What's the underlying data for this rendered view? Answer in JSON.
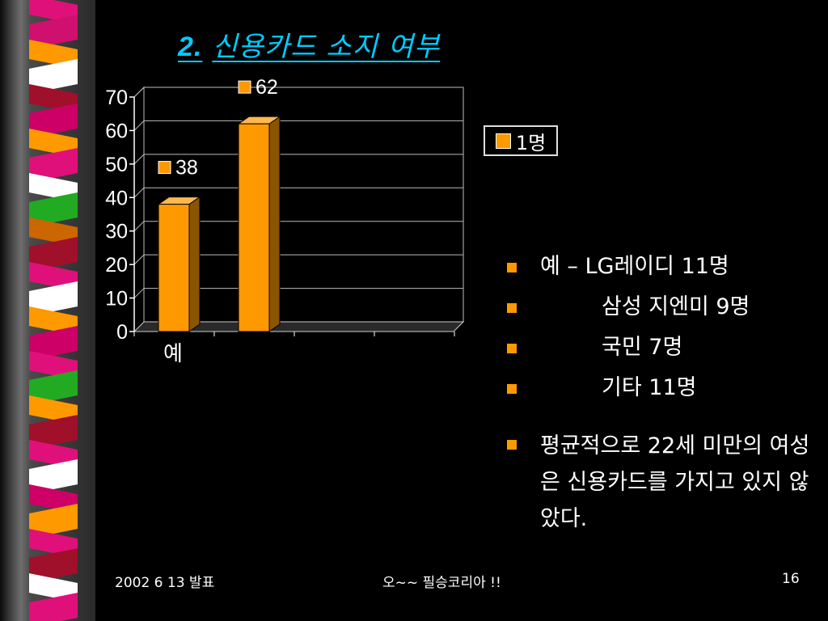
{
  "slide": {
    "title_number": "2.",
    "title_text": "신용카드 소지 여부"
  },
  "colors": {
    "background": "#000000",
    "title": "#00ccff",
    "bar": "#ff9900",
    "bullet": "#ff9900"
  },
  "chart_data": {
    "type": "bar",
    "categories": [
      "예",
      ""
    ],
    "series": [
      {
        "name": "1명",
        "values": [
          38,
          62
        ]
      }
    ],
    "ylim": [
      0,
      70
    ],
    "yticks": [
      0,
      10,
      20,
      30,
      40,
      50,
      60,
      70
    ],
    "data_labels": [
      "38",
      "62"
    ],
    "grid": true,
    "legend": "right",
    "three_d": true
  },
  "legend": {
    "label": "1명"
  },
  "bullets": [
    {
      "text": "예 – LG레이디 11명",
      "indent": false
    },
    {
      "text": "삼성 지엔미 9명",
      "indent": true
    },
    {
      "text": "국민 7명",
      "indent": true
    },
    {
      "text": "기타 11명",
      "indent": true
    },
    {
      "text": "평균적으로 22세 미만의 여성은 신용카드를 가지고 있지 않았다.",
      "indent": false
    }
  ],
  "footer": {
    "date": "2002 6 13 발표",
    "center": "오~~ 필승코리아 !!",
    "page": "16"
  }
}
